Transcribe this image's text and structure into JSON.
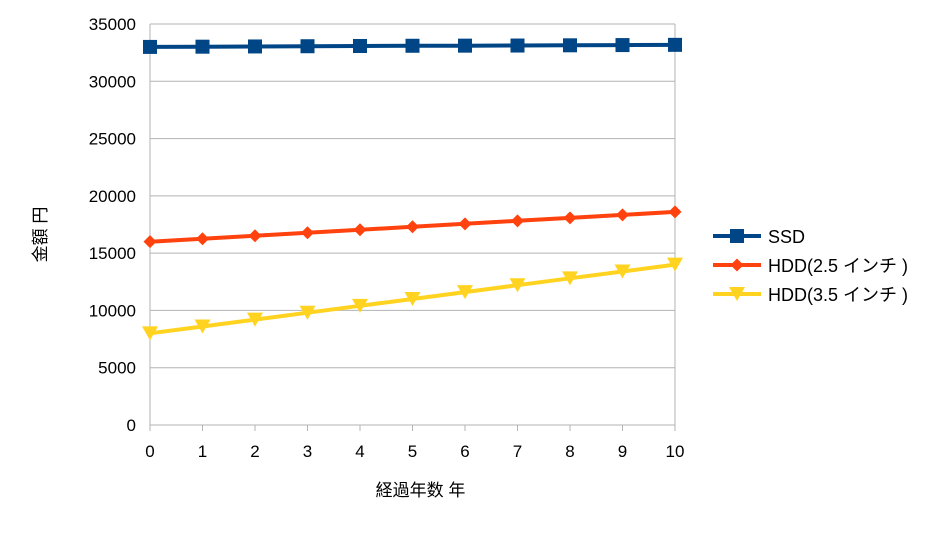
{
  "chart_data": {
    "type": "line",
    "title": "",
    "xlabel": "経過年数 年",
    "ylabel": "金額 円",
    "x": [
      0,
      1,
      2,
      3,
      4,
      5,
      6,
      7,
      8,
      9,
      10
    ],
    "xlim": [
      0,
      10
    ],
    "ylim": [
      0,
      35000
    ],
    "yticks": [
      0,
      5000,
      10000,
      15000,
      20000,
      25000,
      30000,
      35000
    ],
    "grid": "horizontal",
    "legend_position": "right",
    "series": [
      {
        "name": "SSD",
        "color": "#004586",
        "marker": "square",
        "values": [
          33000,
          33020,
          33040,
          33060,
          33080,
          33100,
          33110,
          33120,
          33140,
          33160,
          33180
        ]
      },
      {
        "name": "HDD(2.5 インチ )",
        "color": "#ff420e",
        "marker": "diamond",
        "values": [
          16000,
          16260,
          16520,
          16780,
          17040,
          17300,
          17560,
          17820,
          18080,
          18340,
          18600
        ]
      },
      {
        "name": "HDD(3.5 インチ )",
        "color": "#ffd320",
        "marker": "triangle-down",
        "values": [
          8000,
          8600,
          9200,
          9800,
          10400,
          11000,
          11600,
          12200,
          12800,
          13400,
          14000
        ]
      }
    ]
  }
}
